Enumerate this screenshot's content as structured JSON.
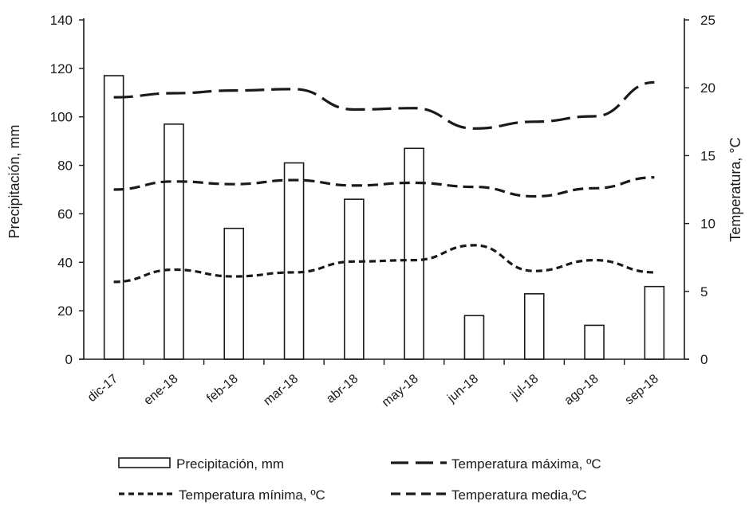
{
  "chart_data": {
    "type": "bar+line",
    "title": "",
    "categories": [
      "dic-17",
      "ene-18",
      "feb-18",
      "mar-18",
      "abr-18",
      "may-18",
      "jun-18",
      "jul-18",
      "ago-18",
      "sep-18"
    ],
    "y_left": {
      "label": "Precipitación, mm",
      "range": [
        0,
        140
      ],
      "ticks": [
        0,
        20,
        40,
        60,
        80,
        100,
        120,
        140
      ]
    },
    "y_right": {
      "label": "Temperatura, °C",
      "range": [
        0,
        25
      ],
      "ticks": [
        0,
        5,
        10,
        15,
        20,
        25
      ]
    },
    "bars": {
      "name": "Precipitación, mm",
      "axis": "left",
      "values": [
        117,
        97,
        54,
        81,
        66,
        87,
        18,
        27,
        14,
        30
      ]
    },
    "series": [
      {
        "name": "Temperatura máxima, ºC",
        "axis": "right",
        "style": "long-dash",
        "values": [
          19.3,
          19.6,
          19.8,
          19.9,
          18.4,
          18.5,
          17.0,
          17.5,
          17.9,
          20.4
        ]
      },
      {
        "name": "Temperatura mínima, ºC",
        "axis": "right",
        "style": "short-dash",
        "values": [
          5.7,
          6.6,
          6.1,
          6.4,
          7.2,
          7.3,
          8.4,
          6.5,
          7.3,
          6.4
        ]
      },
      {
        "name": "Temperatura media,ºC",
        "axis": "right",
        "style": "medium-dash",
        "values": [
          12.5,
          13.1,
          12.9,
          13.2,
          12.8,
          13.0,
          12.7,
          12.0,
          12.6,
          13.4
        ]
      }
    ],
    "grid": false,
    "legend_position": "bottom"
  }
}
